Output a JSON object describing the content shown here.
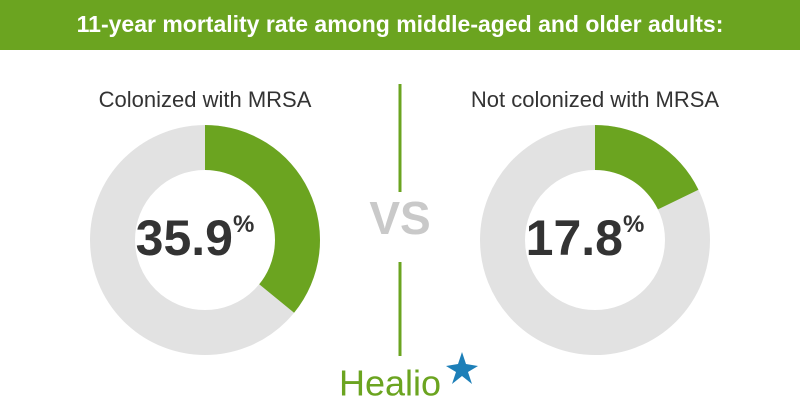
{
  "title": "11-year mortality rate among middle-aged and older adults:",
  "vs_label": "VS",
  "brand": "Healio",
  "chart_data": [
    {
      "type": "donut",
      "title": "Colonized with MRSA",
      "values": [
        35.9
      ],
      "value_unit": "%",
      "total": 100,
      "color": "#6ba420"
    },
    {
      "type": "donut",
      "title": "Not colonized with MRSA",
      "values": [
        17.8
      ],
      "value_unit": "%",
      "total": 100,
      "color": "#6ba420"
    }
  ]
}
